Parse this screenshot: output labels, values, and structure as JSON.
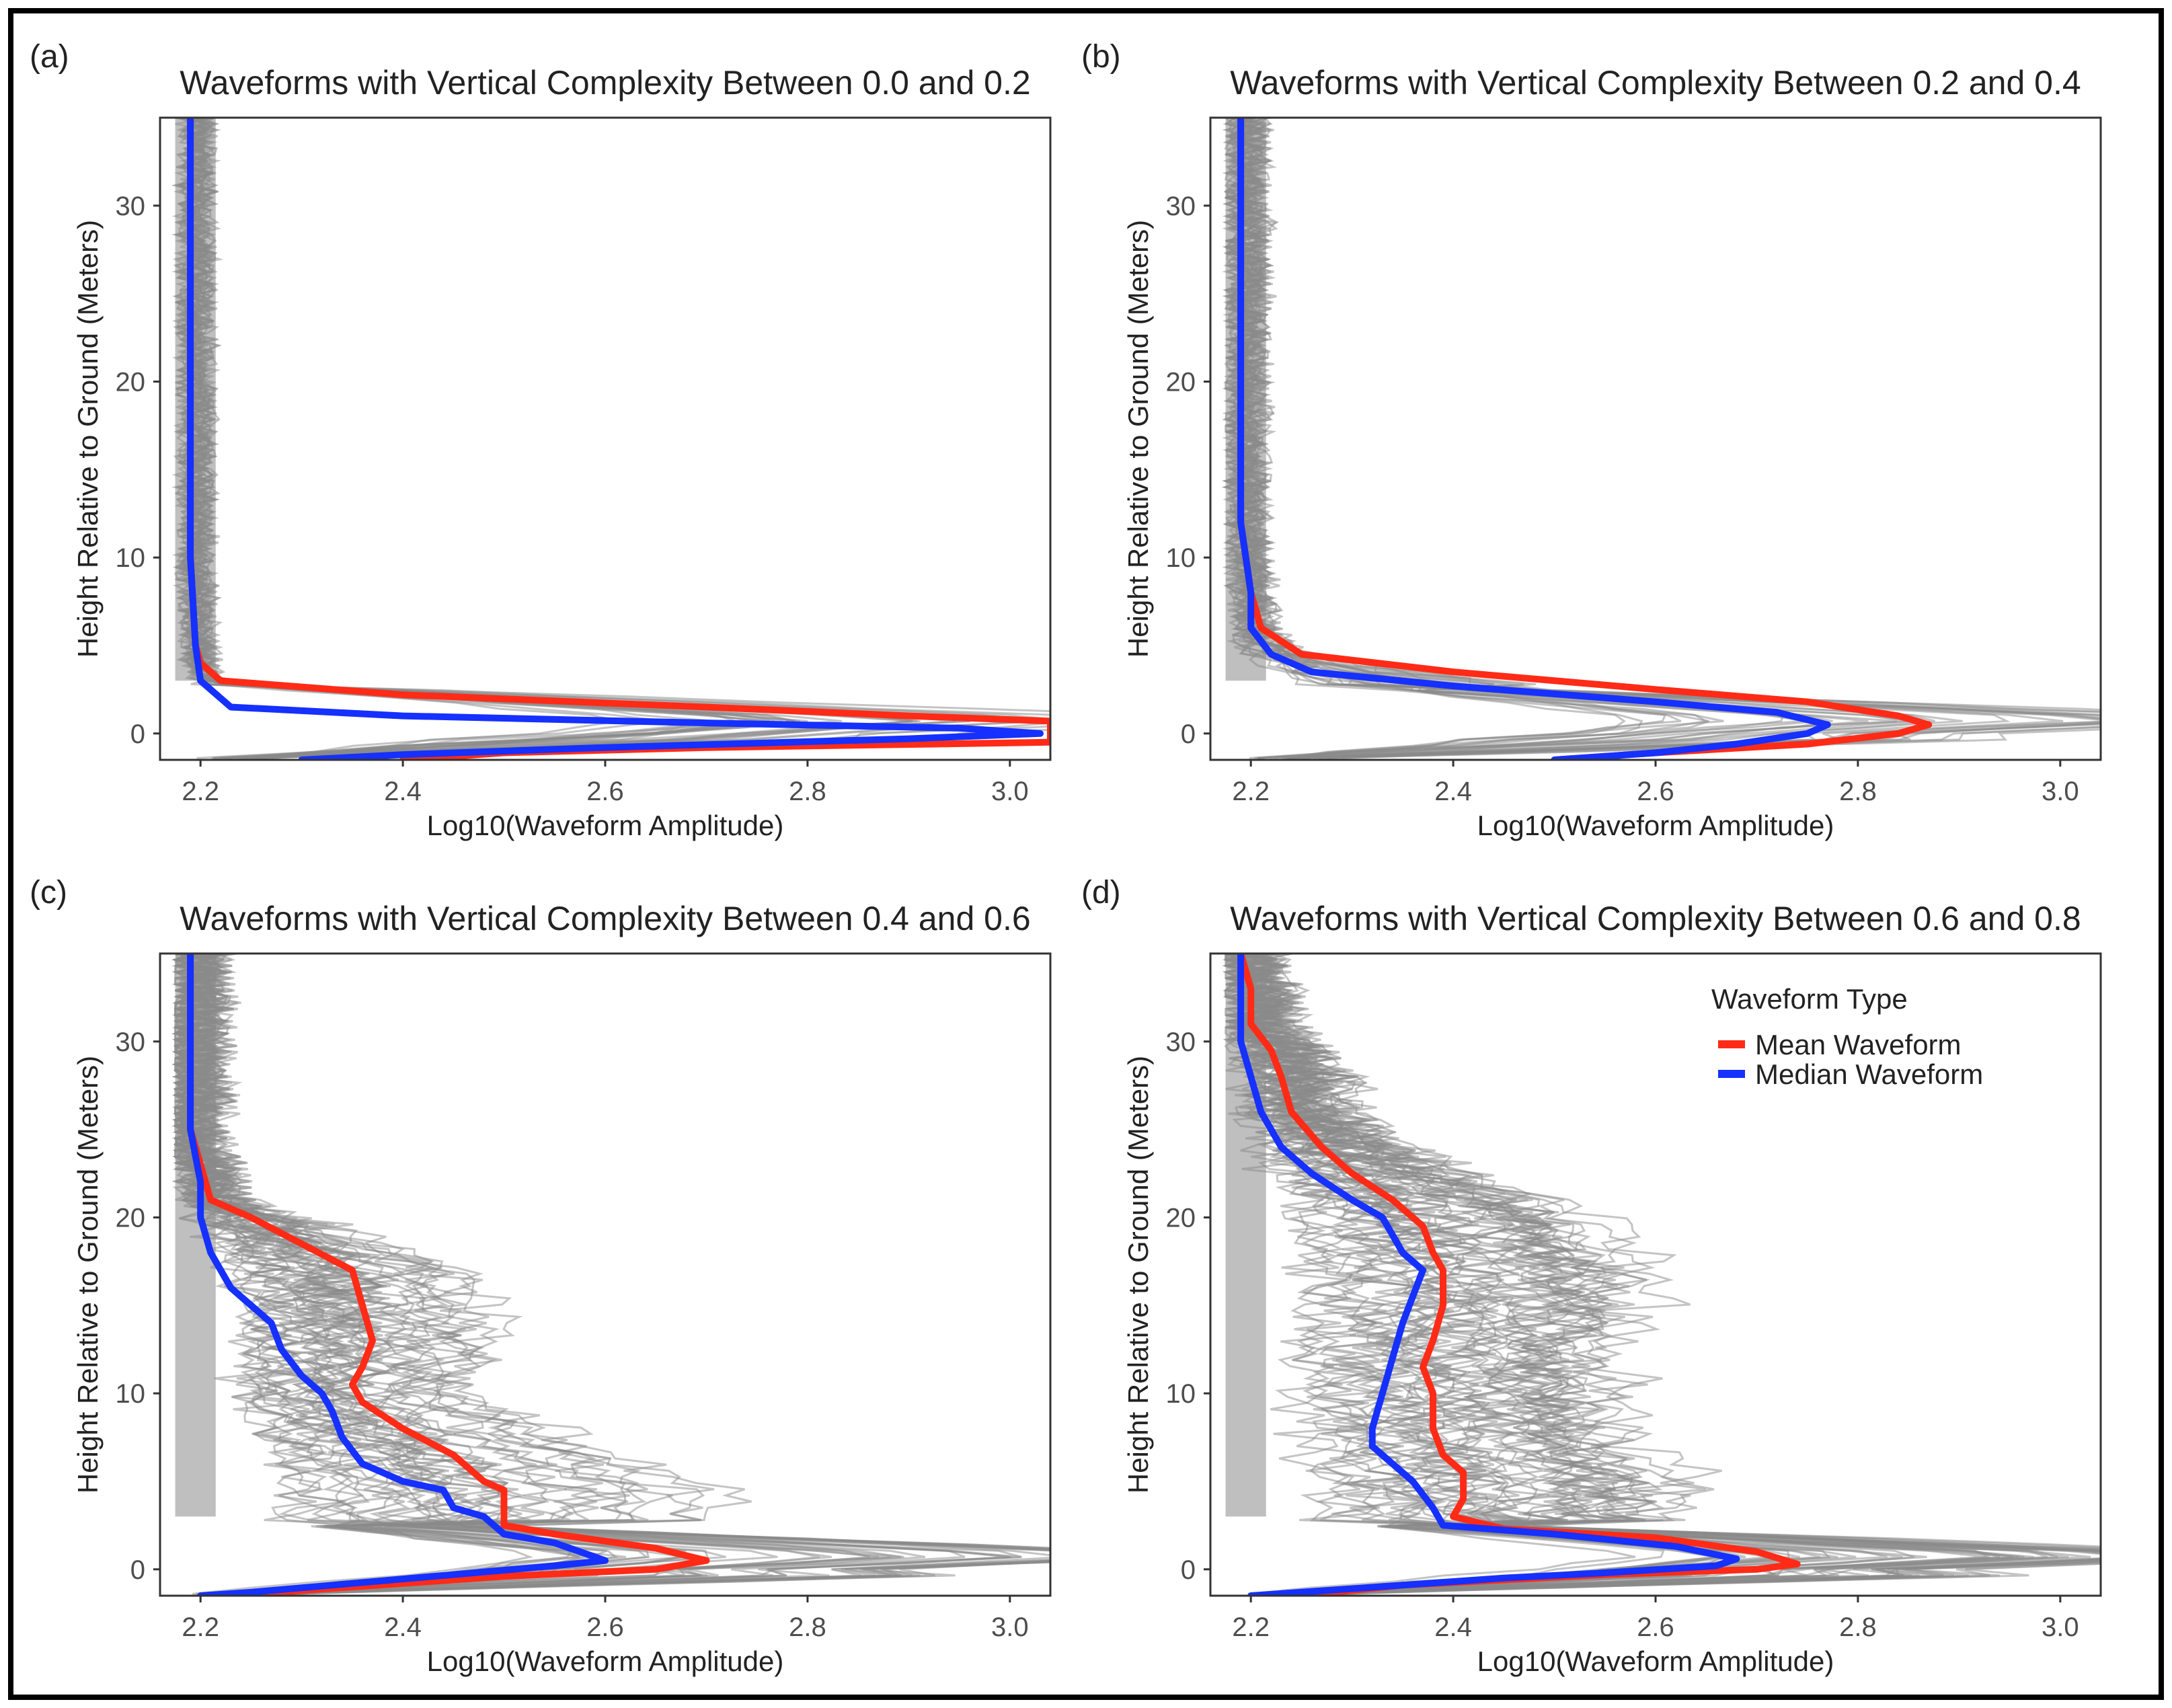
{
  "colors": {
    "mean": "#ff2b17",
    "median": "#1530ff",
    "individual": "#8a8a8a",
    "axis_text": "#4d4d4d",
    "border": "#000000"
  },
  "legend": {
    "title": "Waveform Type",
    "mean_label": "Mean Waveform",
    "median_label": "Median Waveform",
    "placement": "top-right of panel (d)"
  },
  "chart_data": [
    {
      "type": "line",
      "panel_label": "(a)",
      "title": "Waveforms with Vertical Complexity Between 0.0 and 0.2",
      "xlabel": "Log10(Waveform Amplitude)",
      "ylabel": "Height Relative to Ground (Meters)",
      "xlim": [
        2.16,
        3.04
      ],
      "ylim": [
        -1.5,
        35
      ],
      "xticks": [
        "2.2",
        "2.4",
        "2.6",
        "2.8",
        "3.0"
      ],
      "yticks": [
        "0",
        "10",
        "20",
        "30"
      ],
      "series": [
        {
          "name": "Mean Waveform",
          "points": [
            [
              2.19,
              35
            ],
            [
              2.19,
              30
            ],
            [
              2.19,
              20
            ],
            [
              2.19,
              10
            ],
            [
              2.195,
              5
            ],
            [
              2.2,
              4
            ],
            [
              2.22,
              3
            ],
            [
              2.4,
              2.2
            ],
            [
              2.7,
              1.5
            ],
            [
              2.9,
              1
            ],
            [
              3.04,
              0.7
            ],
            [
              3.04,
              -0.5
            ],
            [
              2.7,
              -0.8
            ],
            [
              2.5,
              -1.1
            ],
            [
              2.4,
              -1.5
            ]
          ]
        },
        {
          "name": "Median Waveform",
          "points": [
            [
              2.19,
              35
            ],
            [
              2.19,
              30
            ],
            [
              2.19,
              20
            ],
            [
              2.19,
              10
            ],
            [
              2.195,
              5
            ],
            [
              2.2,
              3
            ],
            [
              2.23,
              1.5
            ],
            [
              2.4,
              1
            ],
            [
              2.7,
              0.6
            ],
            [
              2.95,
              0.3
            ],
            [
              3.03,
              0
            ],
            [
              2.9,
              -0.3
            ],
            [
              2.6,
              -0.8
            ],
            [
              2.4,
              -1.2
            ],
            [
              2.3,
              -1.5
            ]
          ]
        }
      ]
    },
    {
      "type": "line",
      "panel_label": "(b)",
      "title": "Waveforms with Vertical Complexity Between 0.2 and 0.4",
      "xlabel": "Log10(Waveform Amplitude)",
      "ylabel": "Height Relative to Ground (Meters)",
      "xlim": [
        2.16,
        3.04
      ],
      "ylim": [
        -1.5,
        35
      ],
      "xticks": [
        "2.2",
        "2.4",
        "2.6",
        "2.8",
        "3.0"
      ],
      "yticks": [
        "0",
        "10",
        "20",
        "30"
      ],
      "series": [
        {
          "name": "Mean Waveform",
          "points": [
            [
              2.19,
              35
            ],
            [
              2.19,
              30
            ],
            [
              2.19,
              20
            ],
            [
              2.19,
              12
            ],
            [
              2.2,
              8
            ],
            [
              2.21,
              6
            ],
            [
              2.25,
              4.5
            ],
            [
              2.4,
              3.5
            ],
            [
              2.6,
              2.5
            ],
            [
              2.75,
              1.8
            ],
            [
              2.84,
              1
            ],
            [
              2.87,
              0.5
            ],
            [
              2.84,
              0
            ],
            [
              2.75,
              -0.6
            ],
            [
              2.6,
              -1.1
            ],
            [
              2.5,
              -1.5
            ]
          ]
        },
        {
          "name": "Median Waveform",
          "points": [
            [
              2.19,
              35
            ],
            [
              2.19,
              30
            ],
            [
              2.19,
              20
            ],
            [
              2.19,
              12
            ],
            [
              2.2,
              8
            ],
            [
              2.2,
              6
            ],
            [
              2.22,
              4.5
            ],
            [
              2.26,
              3.5
            ],
            [
              2.4,
              2.7
            ],
            [
              2.6,
              1.8
            ],
            [
              2.72,
              1.2
            ],
            [
              2.77,
              0.5
            ],
            [
              2.75,
              0
            ],
            [
              2.68,
              -0.6
            ],
            [
              2.6,
              -1.1
            ],
            [
              2.5,
              -1.5
            ]
          ]
        }
      ]
    },
    {
      "type": "line",
      "panel_label": "(c)",
      "title": "Waveforms with Vertical Complexity Between 0.4 and 0.6",
      "xlabel": "Log10(Waveform Amplitude)",
      "ylabel": "Height Relative to Ground (Meters)",
      "xlim": [
        2.16,
        3.04
      ],
      "ylim": [
        -1.5,
        35
      ],
      "xticks": [
        "2.2",
        "2.4",
        "2.6",
        "2.8",
        "3.0"
      ],
      "yticks": [
        "0",
        "10",
        "20",
        "30"
      ],
      "series": [
        {
          "name": "Mean Waveform",
          "points": [
            [
              2.19,
              35
            ],
            [
              2.19,
              30
            ],
            [
              2.19,
              25
            ],
            [
              2.2,
              23
            ],
            [
              2.21,
              21
            ],
            [
              2.25,
              20
            ],
            [
              2.3,
              18.5
            ],
            [
              2.35,
              17
            ],
            [
              2.36,
              15
            ],
            [
              2.37,
              13
            ],
            [
              2.36,
              11.5
            ],
            [
              2.35,
              10.5
            ],
            [
              2.36,
              9.5
            ],
            [
              2.4,
              8
            ],
            [
              2.45,
              6.5
            ],
            [
              2.48,
              5
            ],
            [
              2.5,
              4.5
            ],
            [
              2.5,
              3
            ],
            [
              2.5,
              2.5
            ],
            [
              2.55,
              2
            ],
            [
              2.65,
              1.2
            ],
            [
              2.7,
              0.5
            ],
            [
              2.65,
              0
            ],
            [
              2.5,
              -0.4
            ],
            [
              2.4,
              -0.8
            ],
            [
              2.3,
              -1.2
            ],
            [
              2.25,
              -1.5
            ]
          ]
        },
        {
          "name": "Median Waveform",
          "points": [
            [
              2.19,
              35
            ],
            [
              2.19,
              30
            ],
            [
              2.19,
              25
            ],
            [
              2.2,
              22
            ],
            [
              2.2,
              20
            ],
            [
              2.21,
              18
            ],
            [
              2.23,
              16
            ],
            [
              2.25,
              15
            ],
            [
              2.27,
              14
            ],
            [
              2.28,
              12.5
            ],
            [
              2.3,
              11
            ],
            [
              2.32,
              10
            ],
            [
              2.33,
              9
            ],
            [
              2.34,
              7.5
            ],
            [
              2.36,
              6
            ],
            [
              2.4,
              5
            ],
            [
              2.44,
              4.5
            ],
            [
              2.45,
              3.5
            ],
            [
              2.48,
              3
            ],
            [
              2.5,
              2
            ],
            [
              2.55,
              1.5
            ],
            [
              2.6,
              0.5
            ],
            [
              2.55,
              0.2
            ],
            [
              2.45,
              -0.3
            ],
            [
              2.35,
              -0.8
            ],
            [
              2.25,
              -1.3
            ],
            [
              2.2,
              -1.5
            ]
          ]
        }
      ]
    },
    {
      "type": "line",
      "panel_label": "(d)",
      "title": "Waveforms with Vertical Complexity Between 0.6 and 0.8",
      "xlabel": "Log10(Waveform Amplitude)",
      "ylabel": "Height Relative to Ground (Meters)",
      "xlim": [
        2.16,
        3.04
      ],
      "ylim": [
        -1.5,
        35
      ],
      "xticks": [
        "2.2",
        "2.4",
        "2.6",
        "2.8",
        "3.0"
      ],
      "yticks": [
        "0",
        "10",
        "20",
        "30"
      ],
      "series": [
        {
          "name": "Mean Waveform",
          "points": [
            [
              2.19,
              35
            ],
            [
              2.2,
              33
            ],
            [
              2.2,
              31
            ],
            [
              2.22,
              29.5
            ],
            [
              2.23,
              28
            ],
            [
              2.24,
              26
            ],
            [
              2.27,
              24
            ],
            [
              2.3,
              22.5
            ],
            [
              2.34,
              21
            ],
            [
              2.37,
              19.5
            ],
            [
              2.38,
              18
            ],
            [
              2.39,
              17
            ],
            [
              2.39,
              15
            ],
            [
              2.38,
              13
            ],
            [
              2.37,
              11.5
            ],
            [
              2.38,
              10
            ],
            [
              2.38,
              8
            ],
            [
              2.39,
              6.5
            ],
            [
              2.41,
              5.5
            ],
            [
              2.41,
              4
            ],
            [
              2.4,
              3
            ],
            [
              2.45,
              2.3
            ],
            [
              2.6,
              1.8
            ],
            [
              2.7,
              1
            ],
            [
              2.74,
              0.3
            ],
            [
              2.7,
              0
            ],
            [
              2.55,
              -0.3
            ],
            [
              2.45,
              -0.6
            ],
            [
              2.35,
              -0.9
            ],
            [
              2.3,
              -1.2
            ],
            [
              2.25,
              -1.5
            ]
          ]
        },
        {
          "name": "Median Waveform",
          "points": [
            [
              2.19,
              35
            ],
            [
              2.19,
              32
            ],
            [
              2.19,
              30
            ],
            [
              2.2,
              28
            ],
            [
              2.21,
              26
            ],
            [
              2.23,
              24
            ],
            [
              2.26,
              22.5
            ],
            [
              2.3,
              21
            ],
            [
              2.33,
              20
            ],
            [
              2.35,
              18
            ],
            [
              2.37,
              17
            ],
            [
              2.36,
              15.5
            ],
            [
              2.35,
              14
            ],
            [
              2.34,
              12
            ],
            [
              2.33,
              10
            ],
            [
              2.32,
              8
            ],
            [
              2.32,
              7
            ],
            [
              2.34,
              6
            ],
            [
              2.36,
              5
            ],
            [
              2.38,
              3.5
            ],
            [
              2.39,
              2.5
            ],
            [
              2.5,
              2
            ],
            [
              2.62,
              1.3
            ],
            [
              2.68,
              0.6
            ],
            [
              2.66,
              0.2
            ],
            [
              2.55,
              -0.2
            ],
            [
              2.45,
              -0.5
            ],
            [
              2.35,
              -0.9
            ],
            [
              2.25,
              -1.3
            ],
            [
              2.2,
              -1.5
            ]
          ]
        }
      ]
    }
  ]
}
